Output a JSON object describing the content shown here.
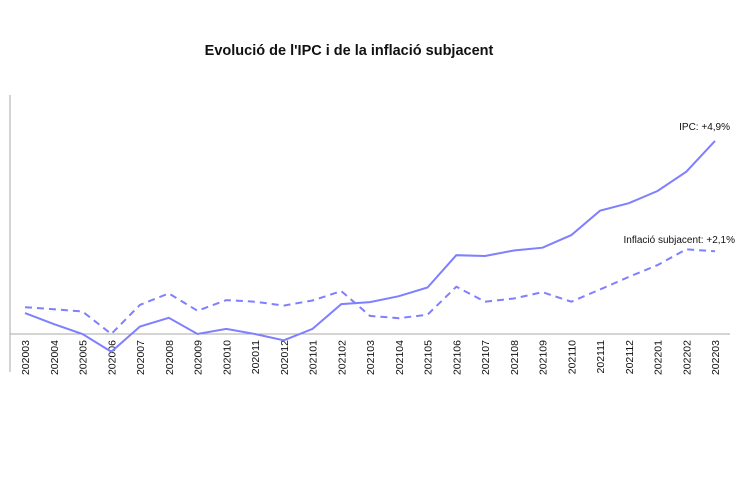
{
  "chart_data": {
    "type": "line",
    "title": "Evolució de l'IPC i de la inflació subjacent",
    "xlabel": "",
    "ylabel": "",
    "ylim": [
      -0.6,
      6.0
    ],
    "grid": false,
    "legend": "none",
    "categories": [
      "202003",
      "202004",
      "202005",
      "202006",
      "202007",
      "202008",
      "202009",
      "202010",
      "202011",
      "202012",
      "202101",
      "202102",
      "202103",
      "202104",
      "202105",
      "202106",
      "202107",
      "202108",
      "202109",
      "202110",
      "202111",
      "202112",
      "202201",
      "202202",
      "202203"
    ],
    "series": [
      {
        "key": "ipc",
        "style": "solid",
        "color": "#7f7fff",
        "values": [
          0.53,
          0.25,
          0.0,
          -0.45,
          0.19,
          0.41,
          0.0,
          0.13,
          0.0,
          -0.16,
          0.13,
          0.76,
          0.81,
          0.96,
          1.18,
          2.0,
          1.98,
          2.12,
          2.19,
          2.51,
          3.13,
          3.32,
          3.63,
          4.12,
          4.9
        ]
      },
      {
        "key": "core",
        "style": "dashed",
        "color": "#7f7fff",
        "values": [
          0.68,
          0.63,
          0.57,
          0.0,
          0.74,
          1.03,
          0.59,
          0.86,
          0.82,
          0.72,
          0.85,
          1.09,
          0.46,
          0.4,
          0.49,
          1.2,
          0.82,
          0.9,
          1.06,
          0.82,
          1.13,
          1.45,
          1.75,
          2.15,
          2.1
        ]
      }
    ],
    "annotations": [
      {
        "series": "ipc",
        "text": "IPC: +4,9%"
      },
      {
        "series": "core",
        "text": "Inflació subjacent: +2,1%"
      }
    ]
  }
}
